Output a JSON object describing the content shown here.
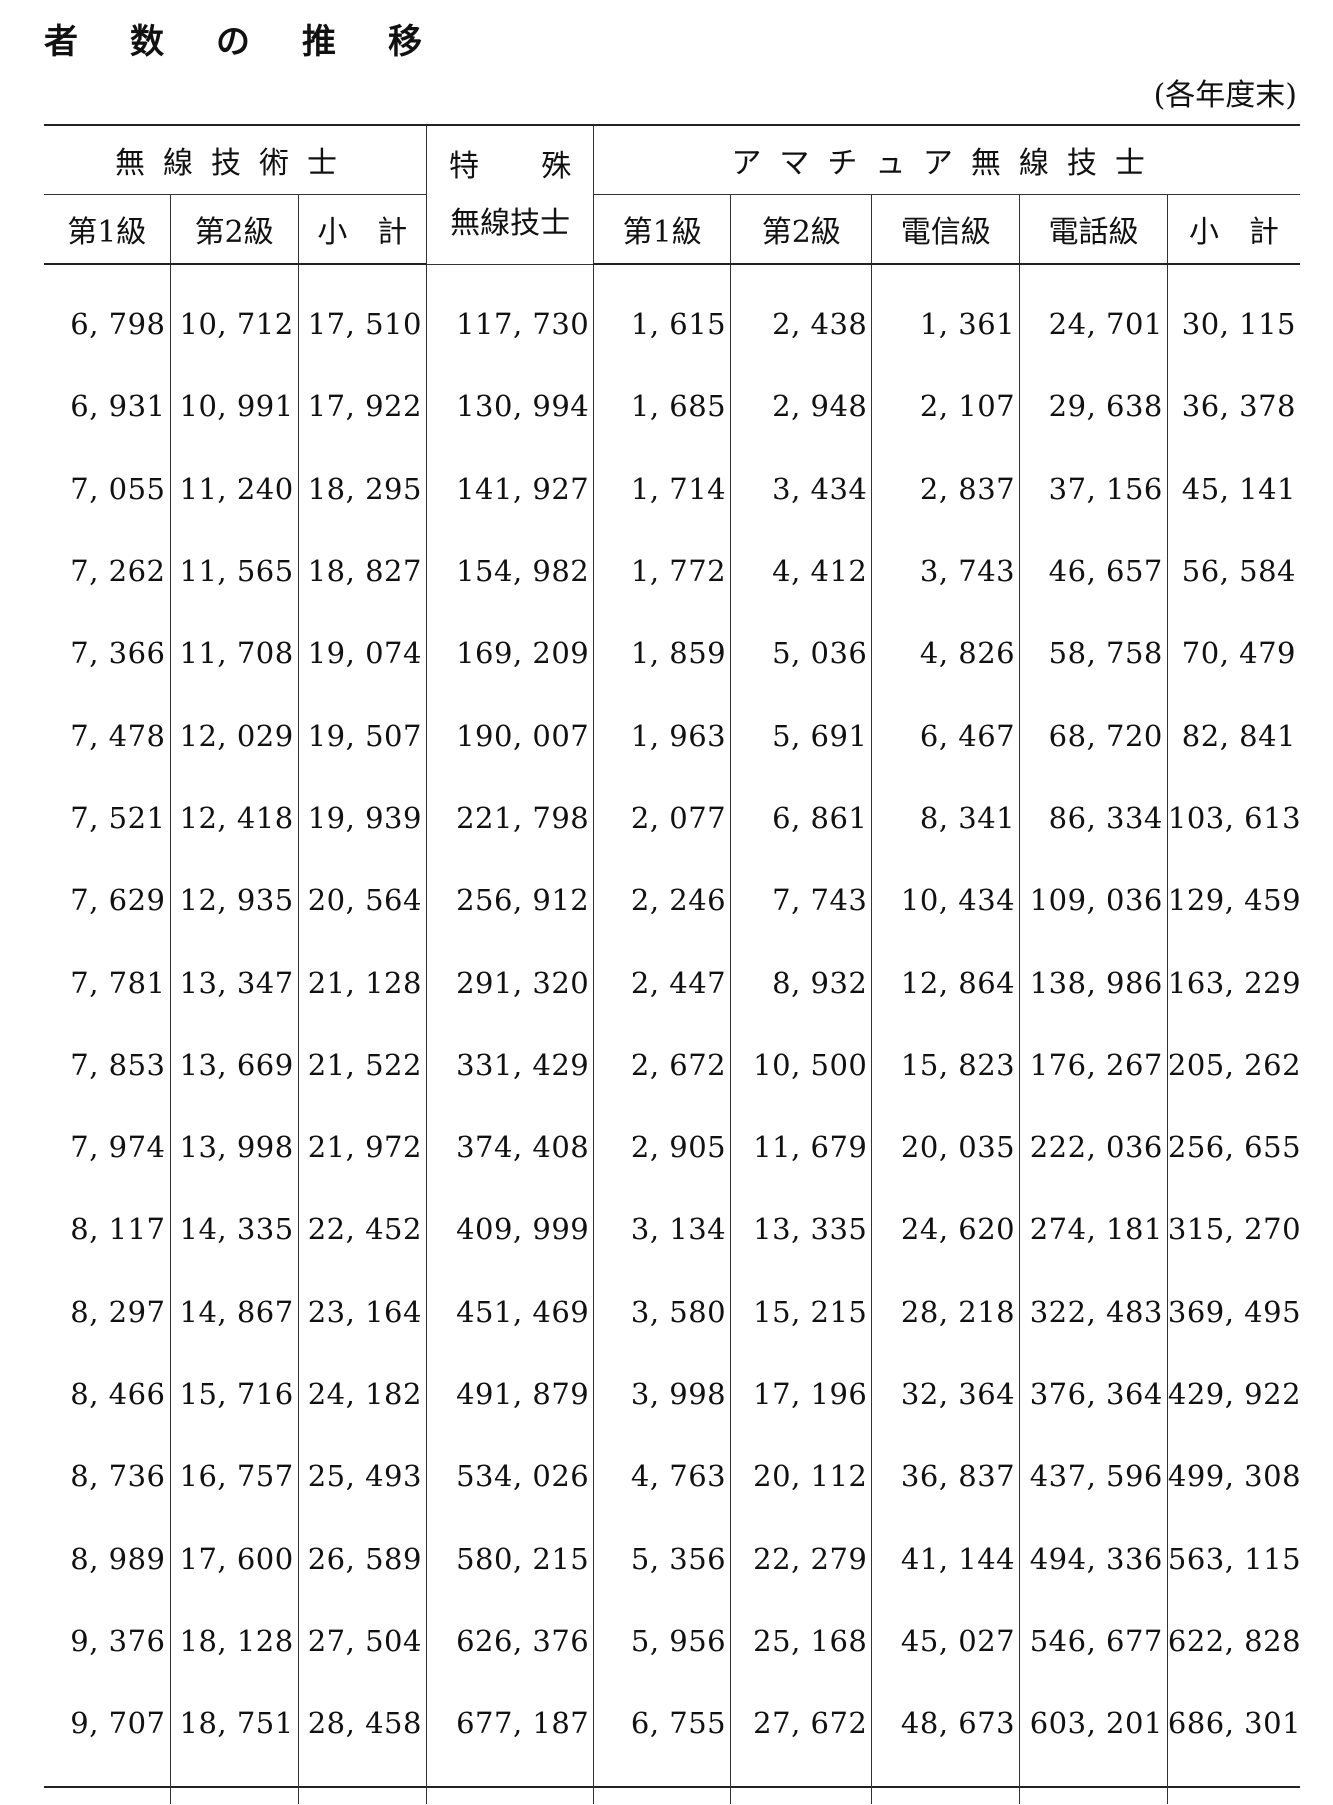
{
  "title": "者数の推移",
  "unit_note": "(各年度末)",
  "header": {
    "group_wireless_engineer": "無線技術士",
    "group_special_line1_a": "特",
    "group_special_line1_b": "殊",
    "group_special_line2": "無線技士",
    "group_amateur": "アマチュア無線技士",
    "col_1kyu": "第1級",
    "col_2kyu": "第2級",
    "col_subtotal": "小　計",
    "col_telegraph": "電信級",
    "col_telephone": "電話級"
  },
  "rows": [
    [
      "6, 798",
      "10, 712",
      "17, 510",
      "117, 730",
      "1, 615",
      "2, 438",
      "1, 361",
      "24, 701",
      "30, 115"
    ],
    [
      "6, 931",
      "10, 991",
      "17, 922",
      "130, 994",
      "1, 685",
      "2, 948",
      "2, 107",
      "29, 638",
      "36, 378"
    ],
    [
      "7, 055",
      "11, 240",
      "18, 295",
      "141, 927",
      "1, 714",
      "3, 434",
      "2, 837",
      "37, 156",
      "45, 141"
    ],
    [
      "7, 262",
      "11, 565",
      "18, 827",
      "154, 982",
      "1, 772",
      "4, 412",
      "3, 743",
      "46, 657",
      "56, 584"
    ],
    [
      "7, 366",
      "11, 708",
      "19, 074",
      "169, 209",
      "1, 859",
      "5, 036",
      "4, 826",
      "58, 758",
      "70, 479"
    ],
    [
      "7, 478",
      "12, 029",
      "19, 507",
      "190, 007",
      "1, 963",
      "5, 691",
      "6, 467",
      "68, 720",
      "82, 841"
    ],
    [
      "7, 521",
      "12, 418",
      "19, 939",
      "221, 798",
      "2, 077",
      "6, 861",
      "8, 341",
      "86, 334",
      "103, 613"
    ],
    [
      "7, 629",
      "12, 935",
      "20, 564",
      "256, 912",
      "2, 246",
      "7, 743",
      "10, 434",
      "109, 036",
      "129, 459"
    ],
    [
      "7, 781",
      "13, 347",
      "21, 128",
      "291, 320",
      "2, 447",
      "8, 932",
      "12, 864",
      "138, 986",
      "163, 229"
    ],
    [
      "7, 853",
      "13, 669",
      "21, 522",
      "331, 429",
      "2, 672",
      "10, 500",
      "15, 823",
      "176, 267",
      "205, 262"
    ],
    [
      "7, 974",
      "13, 998",
      "21, 972",
      "374, 408",
      "2, 905",
      "11, 679",
      "20, 035",
      "222, 036",
      "256, 655"
    ],
    [
      "8, 117",
      "14, 335",
      "22, 452",
      "409, 999",
      "3, 134",
      "13, 335",
      "24, 620",
      "274, 181",
      "315, 270"
    ],
    [
      "8, 297",
      "14, 867",
      "23, 164",
      "451, 469",
      "3, 580",
      "15, 215",
      "28, 218",
      "322, 483",
      "369, 495"
    ],
    [
      "8, 466",
      "15, 716",
      "24, 182",
      "491, 879",
      "3, 998",
      "17, 196",
      "32, 364",
      "376, 364",
      "429, 922"
    ],
    [
      "8, 736",
      "16, 757",
      "25, 493",
      "534, 026",
      "4, 763",
      "20, 112",
      "36, 837",
      "437, 596",
      "499, 308"
    ],
    [
      "8, 989",
      "17, 600",
      "26, 589",
      "580, 215",
      "5, 356",
      "22, 279",
      "41, 144",
      "494, 336",
      "563, 115"
    ],
    [
      "9, 376",
      "18, 128",
      "27, 504",
      "626, 376",
      "5, 956",
      "25, 168",
      "45, 027",
      "546, 677",
      "622, 828"
    ],
    [
      "9, 707",
      "18, 751",
      "28, 458",
      "677, 187",
      "6, 755",
      "27, 672",
      "48, 673",
      "603, 201",
      "686, 301"
    ]
  ]
}
